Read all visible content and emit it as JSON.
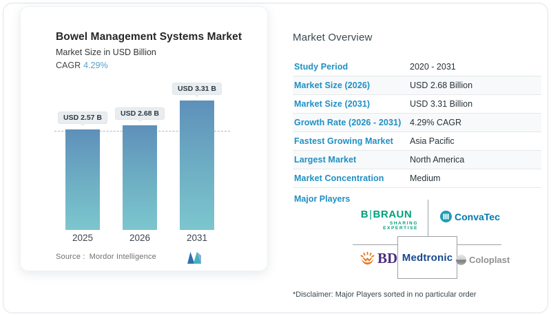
{
  "chart_card": {
    "title": "Bowel Management Systems Market",
    "subtitle": "Market Size in USD Billion",
    "cagr_label": "CAGR",
    "cagr_value": "4.29%",
    "source_label": "Source :",
    "source_value": "Mordor Intelligence"
  },
  "chart_data": {
    "type": "bar",
    "categories": [
      "2025",
      "2026",
      "2031"
    ],
    "values": [
      2.57,
      2.68,
      3.31
    ],
    "bar_labels": [
      "USD 2.57 B",
      "USD 2.68 B",
      "USD 3.31 B"
    ],
    "title": "Bowel Management Systems Market",
    "ylabel": "Market Size in USD Billion",
    "ylim": [
      0,
      3.55
    ],
    "reference_line": 2.57,
    "grid": false,
    "legend": false,
    "bar_gradient_top": "#5e90ba",
    "bar_gradient_bottom": "#7cc6ce"
  },
  "overview": {
    "title": "Market Overview",
    "rows": [
      {
        "label": "Study Period",
        "value": "2020 - 2031"
      },
      {
        "label": "Market Size (2026)",
        "value": "USD 2.68 Billion"
      },
      {
        "label": "Market Size (2031)",
        "value": "USD 3.31 Billion"
      },
      {
        "label": "Growth Rate (2026 - 2031)",
        "value": "4.29% CAGR"
      },
      {
        "label": "Fastest Growing Market",
        "value": "Asia Pacific"
      },
      {
        "label": "Largest Market",
        "value": "North America"
      },
      {
        "label": "Market Concentration",
        "value": "Medium"
      }
    ],
    "major_players_label": "Major Players",
    "players": {
      "braun": {
        "name": "B|BRAUN",
        "tagline": "SHARING EXPERTISE"
      },
      "convatec": {
        "name": "ConvaTec"
      },
      "bd": {
        "name": "BD"
      },
      "medtronic": {
        "name": "Medtronic"
      },
      "coloplast": {
        "name": "Coloplast"
      }
    },
    "disclaimer": "*Disclaimer: Major Players sorted in no particular order"
  },
  "colors": {
    "accent_blue": "#1e8fc3",
    "cagr_blue": "#58a0cc",
    "braun_green": "#00a07c",
    "convatec_blue": "#0079ad",
    "bd_purple": "#4b2e83",
    "bd_orange": "#e87722",
    "medtronic_navy": "#17468f",
    "coloplast_gray": "#8f9193"
  }
}
